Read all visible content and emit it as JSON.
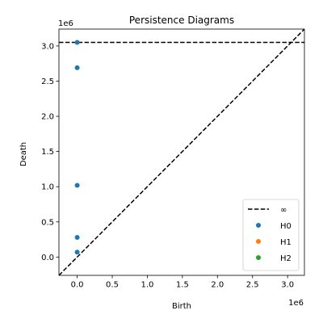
{
  "chart_data": {
    "type": "scatter",
    "title": "Persistence Diagrams",
    "xlabel": "Birth",
    "ylabel": "Death",
    "x_offset_label": "1e6",
    "y_offset_label": "1e6",
    "scale_factor": 1000000,
    "xlim": [
      -0.26,
      3.24
    ],
    "ylim": [
      -0.26,
      3.24
    ],
    "x_ticks": [
      0.0,
      0.5,
      1.0,
      1.5,
      2.0,
      2.5,
      3.0
    ],
    "y_ticks": [
      0.0,
      0.5,
      1.0,
      1.5,
      2.0,
      2.5,
      3.0
    ],
    "x_tick_labels": [
      "0.0",
      "0.5",
      "1.0",
      "1.5",
      "2.0",
      "2.5",
      "3.0"
    ],
    "y_tick_labels": [
      "0.0",
      "0.5",
      "1.0",
      "1.5",
      "2.0",
      "2.5",
      "3.0"
    ],
    "grid": false,
    "legend_position": "lower-right",
    "infinity_line": {
      "name": "∞",
      "y": 3.05,
      "color": "#000000",
      "style": "dashed"
    },
    "diagonal": {
      "color": "#000000",
      "style": "dashed"
    },
    "series": [
      {
        "name": "H0",
        "color": "#1f77b4",
        "points": [
          {
            "x": 0.0,
            "y": 0.07
          },
          {
            "x": 0.0,
            "y": 0.28
          },
          {
            "x": 0.0,
            "y": 1.02
          },
          {
            "x": 0.0,
            "y": 2.69
          },
          {
            "x": 0.0,
            "y": 3.05
          }
        ]
      },
      {
        "name": "H1",
        "color": "#ff7f0e",
        "points": []
      },
      {
        "name": "H2",
        "color": "#2ca02c",
        "points": []
      }
    ]
  }
}
